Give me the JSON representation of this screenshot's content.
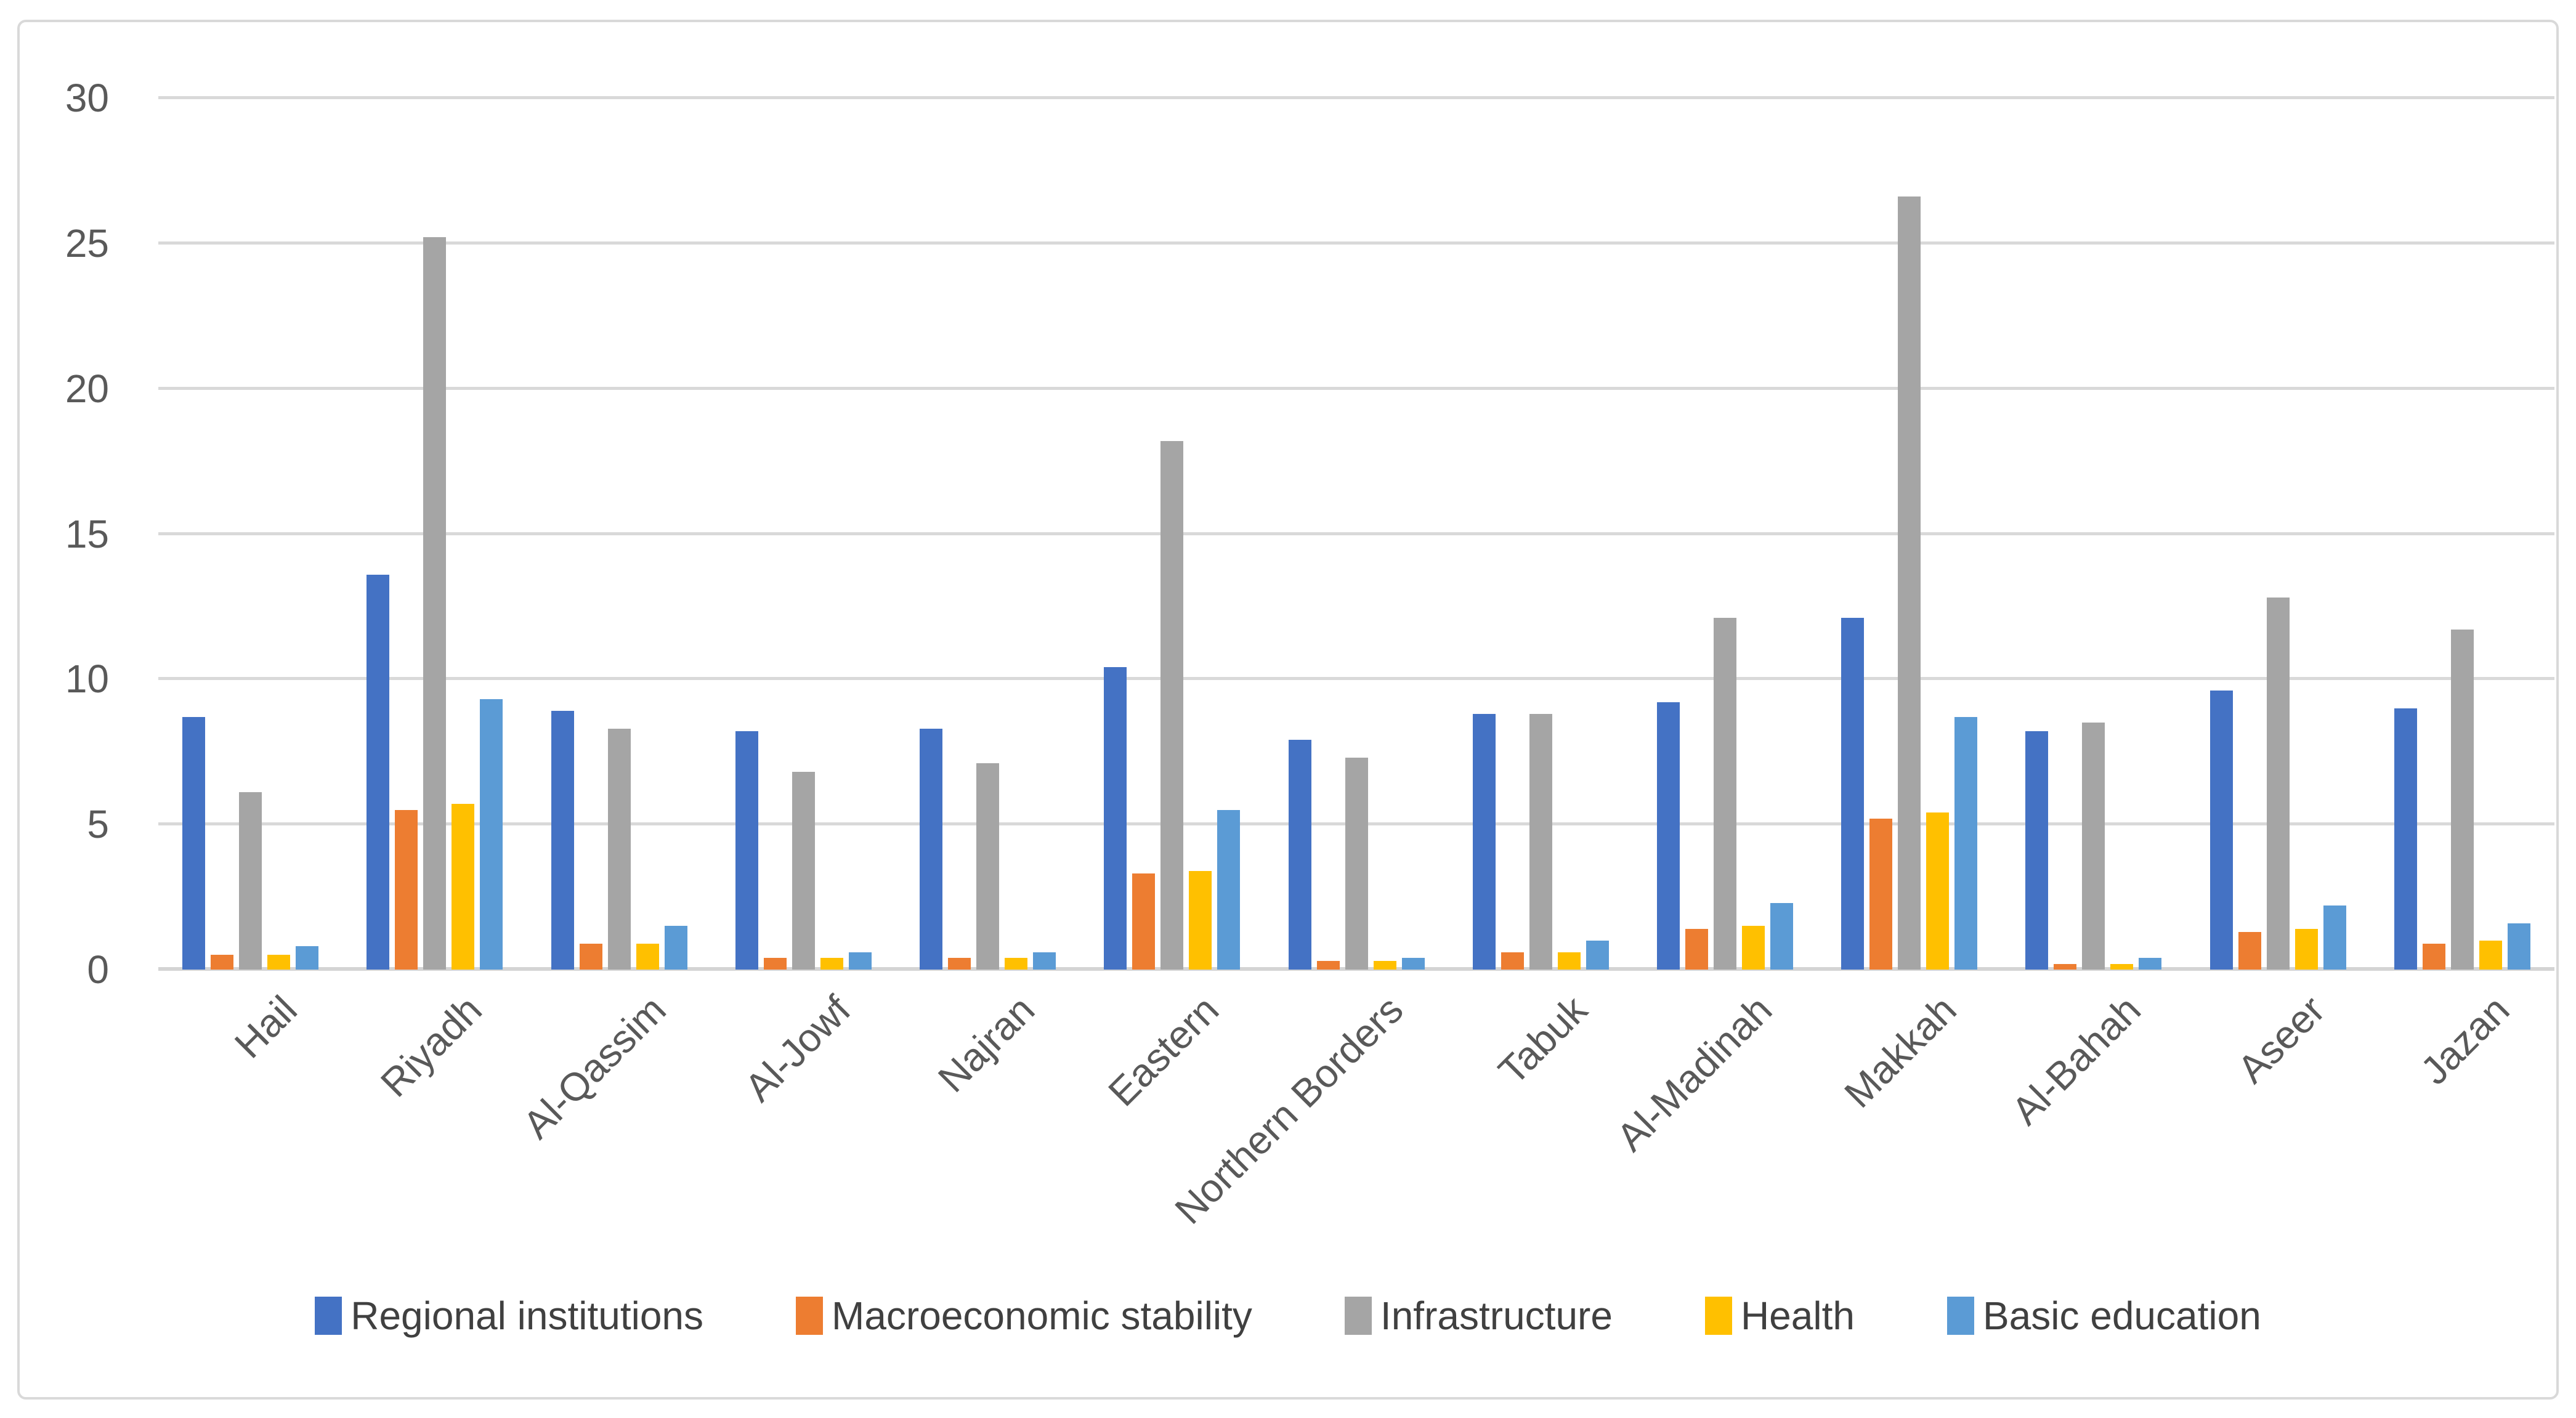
{
  "chart_data": {
    "type": "bar",
    "title": "",
    "xlabel": "",
    "ylabel": "",
    "ylim": [
      0,
      30
    ],
    "yticks": [
      0,
      5,
      10,
      15,
      20,
      25,
      30
    ],
    "grid": true,
    "legend_position": "bottom",
    "categories": [
      "Hail",
      "Riyadh",
      "Al-Qassim",
      "Al-Jowf",
      "Najran",
      "Eastern",
      "Northern Borders",
      "Tabuk",
      "Al-Madinah",
      "Makkah",
      "Al-Bahah",
      "Aseer",
      "Jazan"
    ],
    "series": [
      {
        "name": "Regional institutions",
        "color": "#4472C4",
        "values": [
          8.7,
          13.6,
          8.9,
          8.2,
          8.3,
          10.4,
          7.9,
          8.8,
          9.2,
          12.1,
          8.2,
          9.6,
          9.0
        ]
      },
      {
        "name": "Macroeconomic stability",
        "color": "#ED7D31",
        "values": [
          0.5,
          5.5,
          0.9,
          0.4,
          0.4,
          3.3,
          0.3,
          0.6,
          1.4,
          5.2,
          0.2,
          1.3,
          0.9
        ]
      },
      {
        "name": "Infrastructure",
        "color": "#A5A5A5",
        "values": [
          6.1,
          25.2,
          8.3,
          6.8,
          7.1,
          18.2,
          7.3,
          8.8,
          12.1,
          26.6,
          8.5,
          12.8,
          11.7
        ]
      },
      {
        "name": "Health",
        "color": "#FFC000",
        "values": [
          0.5,
          5.7,
          0.9,
          0.4,
          0.4,
          3.4,
          0.3,
          0.6,
          1.5,
          5.4,
          0.2,
          1.4,
          1.0
        ]
      },
      {
        "name": "Basic education",
        "color": "#5B9BD5",
        "values": [
          0.8,
          9.3,
          1.5,
          0.6,
          0.6,
          5.5,
          0.4,
          1.0,
          2.3,
          8.7,
          0.4,
          2.2,
          1.6
        ]
      }
    ],
    "colors": {
      "axis_text": "#595959",
      "gridline": "#D9D9D9",
      "border": "#D9D9D9",
      "background": "#FFFFFF"
    }
  }
}
